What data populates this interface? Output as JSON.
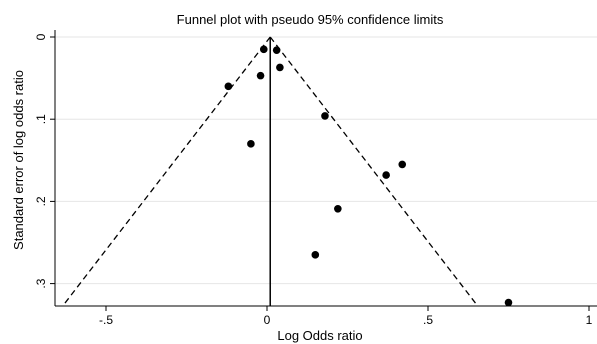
{
  "chart_data": {
    "type": "scatter",
    "title": "Funnel plot with pseudo 95% confidence limits",
    "xlabel": "Log Odds ratio",
    "ylabel": "Standard error of log odds ratio",
    "xlim": [
      -0.6,
      1.0
    ],
    "ylim": [
      0,
      0.32
    ],
    "y_reversed": true,
    "grid": "horizontal",
    "x_ticks": [
      {
        "value": -0.5,
        "label": "-.5"
      },
      {
        "value": 0,
        "label": "0"
      },
      {
        "value": 0.5,
        "label": ".5"
      },
      {
        "value": 1,
        "label": "1"
      }
    ],
    "y_ticks": [
      {
        "value": 0,
        "label": "0"
      },
      {
        "value": 0.1,
        "label": ".1"
      },
      {
        "value": 0.2,
        "label": ".2"
      },
      {
        "value": 0.3,
        "label": ".3"
      }
    ],
    "pooled_estimate": 0.01,
    "confidence_limits": {
      "apex": {
        "x": 0.01,
        "y": 0
      },
      "left_end": {
        "x": -0.63,
        "y": 0.325
      },
      "right_end": {
        "x": 0.65,
        "y": 0.325
      }
    },
    "points": [
      {
        "x": -0.01,
        "y": 0.015
      },
      {
        "x": 0.03,
        "y": 0.016
      },
      {
        "x": 0.04,
        "y": 0.037
      },
      {
        "x": -0.02,
        "y": 0.047
      },
      {
        "x": -0.12,
        "y": 0.06
      },
      {
        "x": 0.18,
        "y": 0.096
      },
      {
        "x": -0.05,
        "y": 0.13
      },
      {
        "x": 0.42,
        "y": 0.155
      },
      {
        "x": 0.37,
        "y": 0.168
      },
      {
        "x": 0.22,
        "y": 0.209
      },
      {
        "x": 0.15,
        "y": 0.265
      },
      {
        "x": 0.75,
        "y": 0.323
      }
    ]
  }
}
